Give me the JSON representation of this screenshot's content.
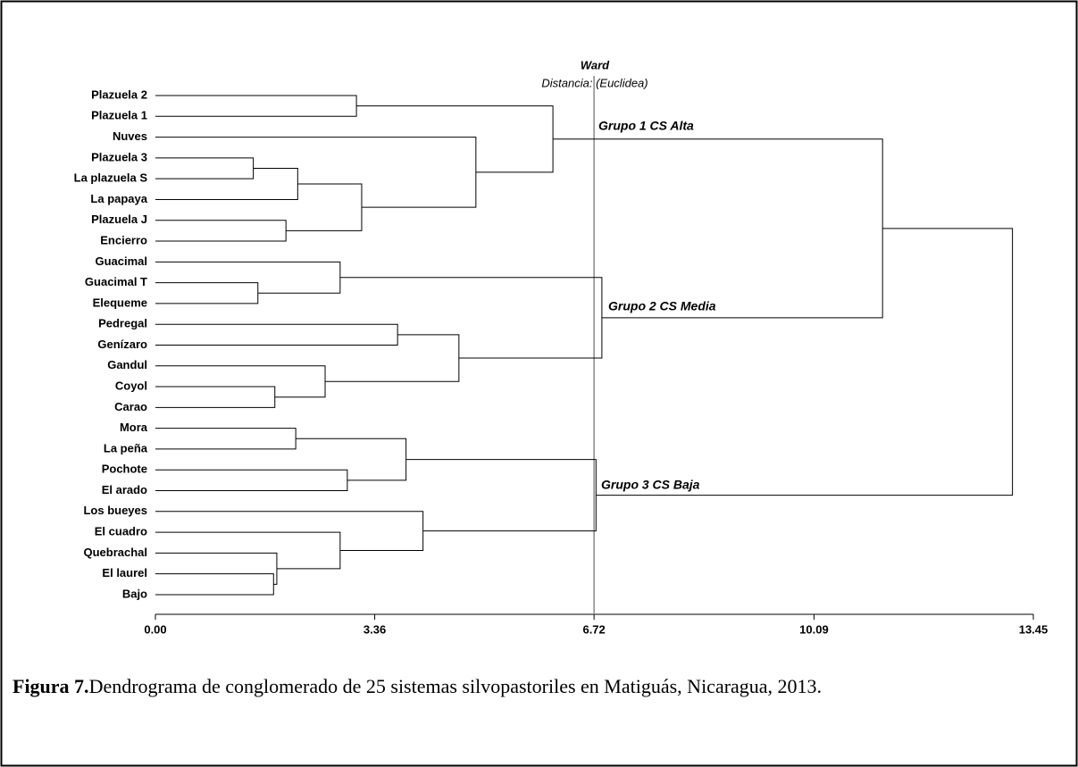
{
  "chart_data": {
    "type": "dendrogram",
    "title": "Ward",
    "subtitle": "Distancia: (Euclidea)",
    "leaves": [
      "Plazuela 2",
      "Plazuela 1",
      "Nuves",
      "Plazuela 3",
      "La plazuela S",
      "La papaya",
      "Plazuela J",
      "Encierro",
      "Guacimal",
      "Guacimal T",
      "Elequeme",
      "Pedregal",
      "Genízaro",
      "Gandul",
      "Coyol",
      "Carao",
      "Mora",
      "La peña",
      "Pochote",
      "El arado",
      "Los bueyes",
      "El cuadro",
      "Quebrachal",
      "El laurel",
      "Bajo"
    ],
    "merges": [
      {
        "join": [
          0,
          1
        ],
        "height": 3.08
      },
      {
        "join": [
          3,
          4
        ],
        "height": 1.5
      },
      {
        "join": [
          26,
          5
        ],
        "height": 2.18
      },
      {
        "join": [
          6,
          7
        ],
        "height": 2.0
      },
      {
        "join": [
          27,
          28
        ],
        "height": 3.16
      },
      {
        "join": [
          2,
          29
        ],
        "height": 4.91
      },
      {
        "join": [
          25,
          30
        ],
        "height": 6.09
      },
      {
        "join": [
          9,
          10
        ],
        "height": 1.57
      },
      {
        "join": [
          8,
          32
        ],
        "height": 2.83
      },
      {
        "join": [
          11,
          12
        ],
        "height": 3.71
      },
      {
        "join": [
          14,
          15
        ],
        "height": 1.83
      },
      {
        "join": [
          13,
          35
        ],
        "height": 2.6
      },
      {
        "join": [
          34,
          36
        ],
        "height": 4.65
      },
      {
        "join": [
          33,
          37
        ],
        "height": 6.84
      },
      {
        "join": [
          16,
          17
        ],
        "height": 2.15
      },
      {
        "join": [
          18,
          19
        ],
        "height": 2.94
      },
      {
        "join": [
          39,
          40
        ],
        "height": 3.84
      },
      {
        "join": [
          23,
          24
        ],
        "height": 1.81
      },
      {
        "join": [
          22,
          42
        ],
        "height": 1.86
      },
      {
        "join": [
          21,
          43
        ],
        "height": 2.83
      },
      {
        "join": [
          20,
          44
        ],
        "height": 4.1
      },
      {
        "join": [
          41,
          45
        ],
        "height": 6.75
      },
      {
        "join": [
          31,
          38
        ],
        "height": 11.14
      },
      {
        "join": [
          47,
          46
        ],
        "height": 13.13
      }
    ],
    "cut": 6.72,
    "annotations": [
      "Grupo 1 CS Alta",
      "Grupo 2 CS Media",
      "Grupo 3 CS Baja"
    ],
    "xlim": [
      0,
      13.45
    ],
    "xticks": [
      {
        "value": 0,
        "label": "0.00"
      },
      3.36,
      6.72,
      10.09,
      13.45
    ],
    "caption_label": "Figura 7.",
    "caption_text": "Dendrograma de conglomerado de 25 sistemas silvopastoriles en Matiguás, Nicaragua, 2013."
  }
}
